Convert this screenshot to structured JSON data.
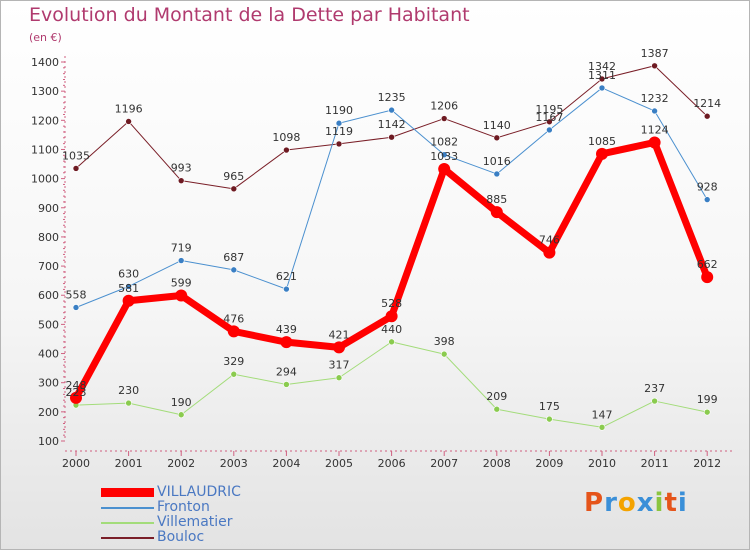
{
  "title": "Evolution du Montant de la Dette par Habitant",
  "subtitle": "(en €)",
  "logo": {
    "letters": [
      "P",
      "r",
      "o",
      "x",
      "i",
      "t",
      "i"
    ],
    "colors": [
      "#e5541a",
      "#3a8fd8",
      "#f4a300",
      "#3a8fd8",
      "#8bc540",
      "#e5541a",
      "#3a8fd8"
    ]
  },
  "chart_data": {
    "type": "line",
    "x": [
      "2000",
      "2001",
      "2002",
      "2003",
      "2004",
      "2005",
      "2006",
      "2007",
      "2008",
      "2009",
      "2010",
      "2011",
      "2012"
    ],
    "ylim": [
      100,
      1400
    ],
    "yticks": [
      100,
      200,
      300,
      400,
      500,
      600,
      700,
      800,
      900,
      1000,
      1100,
      1200,
      1300,
      1400
    ],
    "grid": false,
    "legend_position": "bottom-left",
    "series": [
      {
        "name": "VILLAUDRIC",
        "color": "#ff0000",
        "values": [
          248,
          581,
          599,
          476,
          439,
          421,
          528,
          1033,
          885,
          746,
          1085,
          1124,
          662
        ]
      },
      {
        "name": "Fronton",
        "color": "#4b90cf",
        "values": [
          558,
          630,
          719,
          687,
          621,
          1190,
          1235,
          1082,
          1016,
          1167,
          1311,
          1232,
          928
        ]
      },
      {
        "name": "Villematier",
        "color": "#a3dc7a",
        "values": [
          223,
          230,
          190,
          329,
          294,
          317,
          440,
          398,
          209,
          175,
          147,
          237,
          199
        ]
      },
      {
        "name": "Bouloc",
        "color": "#7a1f28",
        "values": [
          1035,
          1196,
          993,
          965,
          1098,
          1119,
          1142,
          1206,
          1140,
          1195,
          1342,
          1387,
          1214
        ]
      }
    ]
  }
}
